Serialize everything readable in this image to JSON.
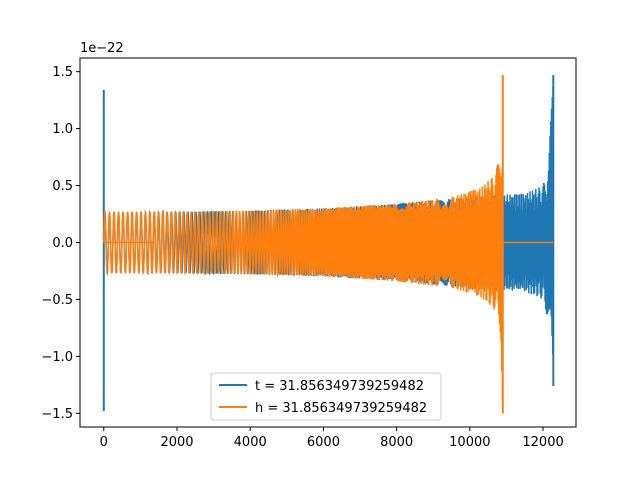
{
  "chart_data": {
    "type": "line",
    "title": "",
    "xlabel": "",
    "ylabel": "",
    "y_offset_label": "1e−22",
    "xlim": [
      -650,
      12900
    ],
    "ylim": [
      -1.62,
      1.62
    ],
    "x_ticks": [
      0,
      2000,
      4000,
      6000,
      8000,
      10000,
      12000
    ],
    "x_tick_labels": [
      "0",
      "2000",
      "4000",
      "6000",
      "8000",
      "10000",
      "12000"
    ],
    "y_ticks": [
      -1.5,
      -1.0,
      -0.5,
      0.0,
      0.5,
      1.0,
      1.5
    ],
    "y_tick_labels": [
      "−1.5",
      "−1.0",
      "−0.5",
      "0.0",
      "0.5",
      "1.0",
      "1.5"
    ],
    "grid": false,
    "legend_position": "lower center",
    "series": [
      {
        "name": "t = 31.856349739259482",
        "color": "#1f77b4",
        "description_points": {
          "spike_x": 0,
          "spike_min": -1.48,
          "spike_max": 1.34,
          "envelope_x": [
            0,
            2000,
            4000,
            6000,
            8000,
            10000,
            11500,
            12000,
            12150,
            12280
          ],
          "envelope_amp": [
            0.27,
            0.27,
            0.28,
            0.3,
            0.34,
            0.4,
            0.43,
            0.5,
            0.7,
            1.47
          ],
          "end_x": 12280,
          "end_min": -1.26,
          "end_max": 1.47
        }
      },
      {
        "name": "h = 31.856349739259482",
        "color": "#ff7f0e",
        "description_points": {
          "flat_start_x": 0,
          "flat_end_x": 1350,
          "envelope_x": [
            0,
            2000,
            4000,
            6000,
            8000,
            9500,
            10300,
            10700,
            10850,
            10900
          ],
          "envelope_amp": [
            0.27,
            0.27,
            0.28,
            0.3,
            0.34,
            0.4,
            0.48,
            0.6,
            0.85,
            1.47
          ],
          "end_x": 10900,
          "end_min": -1.5,
          "end_max": 1.47,
          "flat_after_start_x": 10900,
          "flat_after_end_x": 12280
        }
      }
    ]
  }
}
